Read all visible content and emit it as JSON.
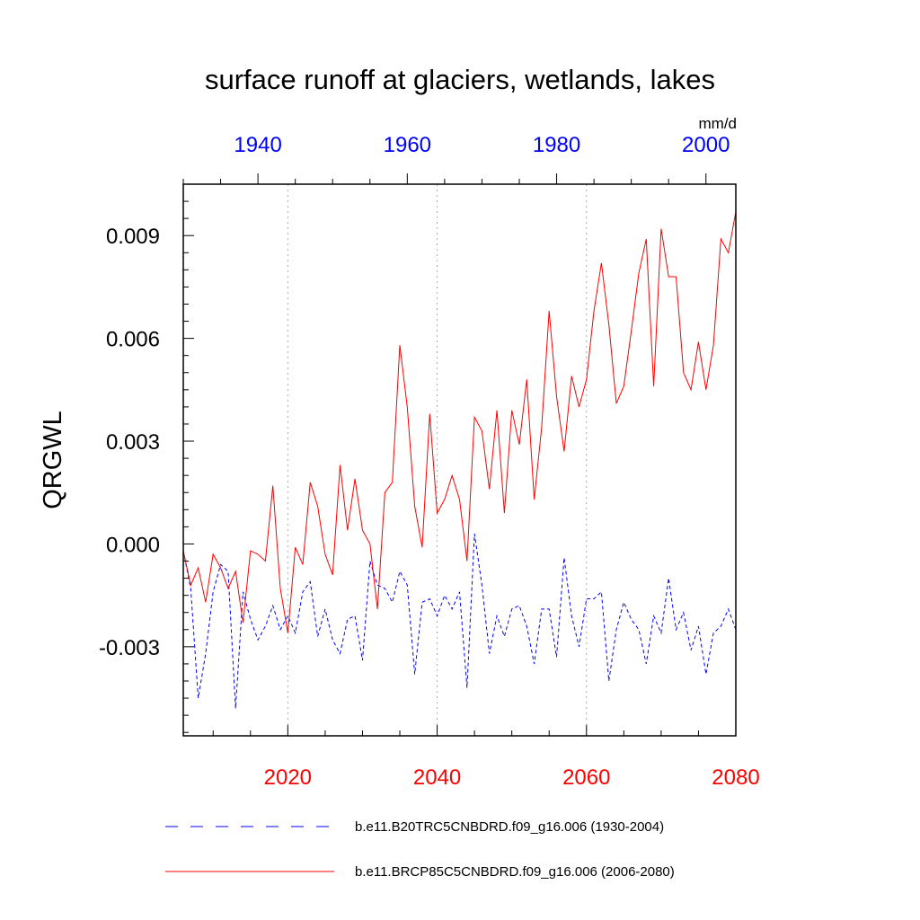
{
  "chart_data": {
    "type": "line",
    "title": "surface runoff at glaciers, wetlands, lakes",
    "ylabel": "QRGWL",
    "units": "mm/d",
    "ylim": [
      -0.0056,
      0.0105
    ],
    "yticks": [
      -0.003,
      0.0,
      0.003,
      0.006,
      0.009
    ],
    "ytick_labels": [
      "-0.003",
      "0.000",
      "0.003",
      "0.006",
      "0.009"
    ],
    "grid": "vertical dotted lines at labeled years",
    "legend_position": "bottom",
    "x_axis_bottom": {
      "range": [
        2006,
        2080
      ],
      "ticks": [
        2020,
        2040,
        2060,
        2080
      ],
      "tick_labels": [
        "2020",
        "2040",
        "2060",
        "2080"
      ],
      "color": "#ff0000"
    },
    "x_axis_top": {
      "range": [
        1930,
        2004
      ],
      "ticks": [
        1940,
        1960,
        1980,
        2000
      ],
      "tick_labels": [
        "1940",
        "1960",
        "1980",
        "2000"
      ],
      "color": "#0000ff"
    },
    "series": [
      {
        "name": "b.e11.B20TRC5CNBDRD.f09_g16.006 (1930-2004)",
        "color": "#0000ff",
        "style": "dashed",
        "axis": "top",
        "x": [
          1930,
          1931,
          1932,
          1933,
          1934,
          1935,
          1936,
          1937,
          1938,
          1939,
          1940,
          1941,
          1942,
          1943,
          1944,
          1945,
          1946,
          1947,
          1948,
          1949,
          1950,
          1951,
          1952,
          1953,
          1954,
          1955,
          1956,
          1957,
          1958,
          1959,
          1960,
          1961,
          1962,
          1963,
          1964,
          1965,
          1966,
          1967,
          1968,
          1969,
          1970,
          1971,
          1972,
          1973,
          1974,
          1975,
          1976,
          1977,
          1978,
          1979,
          1980,
          1981,
          1982,
          1983,
          1984,
          1985,
          1986,
          1987,
          1988,
          1989,
          1990,
          1991,
          1992,
          1993,
          1994,
          1995,
          1996,
          1997,
          1998,
          1999,
          2000,
          2001,
          2002,
          2003,
          2004
        ],
        "values": [
          -0.0002,
          -0.0013,
          -0.0045,
          -0.0032,
          -0.0014,
          -0.0006,
          -0.0008,
          -0.0048,
          -0.0014,
          -0.0022,
          -0.0028,
          -0.0024,
          -0.0018,
          -0.0025,
          -0.0021,
          -0.0026,
          -0.0014,
          -0.0011,
          -0.0027,
          -0.0019,
          -0.0028,
          -0.0032,
          -0.0022,
          -0.0021,
          -0.0034,
          -0.0005,
          -0.0012,
          -0.0013,
          -0.0017,
          -0.0008,
          -0.0012,
          -0.0038,
          -0.0017,
          -0.0016,
          -0.0021,
          -0.0015,
          -0.0019,
          -0.0014,
          -0.0042,
          0.0003,
          -0.0012,
          -0.0032,
          -0.0021,
          -0.0027,
          -0.0019,
          -0.0018,
          -0.0024,
          -0.0035,
          -0.0019,
          -0.0019,
          -0.0033,
          -0.0004,
          -0.0021,
          -0.003,
          -0.0016,
          -0.0016,
          -0.0014,
          -0.004,
          -0.0025,
          -0.0017,
          -0.0022,
          -0.0025,
          -0.0035,
          -0.0021,
          -0.0026,
          -0.001,
          -0.0025,
          -0.002,
          -0.0031,
          -0.0024,
          -0.0038,
          -0.0026,
          -0.0024,
          -0.0019,
          -0.0025
        ]
      },
      {
        "name": "b.e11.BRCP85C5CNBDRD.f09_g16.006 (2006-2080)",
        "color": "#ff0000",
        "style": "solid",
        "axis": "bottom",
        "x": [
          2006,
          2007,
          2008,
          2009,
          2010,
          2011,
          2012,
          2013,
          2014,
          2015,
          2016,
          2017,
          2018,
          2019,
          2020,
          2021,
          2022,
          2023,
          2024,
          2025,
          2026,
          2027,
          2028,
          2029,
          2030,
          2031,
          2032,
          2033,
          2034,
          2035,
          2036,
          2037,
          2038,
          2039,
          2040,
          2041,
          2042,
          2043,
          2044,
          2045,
          2046,
          2047,
          2048,
          2049,
          2050,
          2051,
          2052,
          2053,
          2054,
          2055,
          2056,
          2057,
          2058,
          2059,
          2060,
          2061,
          2062,
          2063,
          2064,
          2065,
          2066,
          2067,
          2068,
          2069,
          2070,
          2071,
          2072,
          2073,
          2074,
          2075,
          2076,
          2077,
          2078,
          2079,
          2080
        ],
        "values": [
          -0.0002,
          -0.0012,
          -0.0007,
          -0.0017,
          -0.0003,
          -0.0007,
          -0.0013,
          -0.0008,
          -0.0023,
          -0.0002,
          -0.0003,
          -0.0005,
          0.0017,
          -0.0013,
          -0.0026,
          -0.0001,
          -0.0006,
          0.0018,
          0.0011,
          -0.0003,
          -0.0009,
          0.0023,
          0.0004,
          0.0019,
          0.0004,
          0.0,
          -0.0019,
          0.0015,
          0.0018,
          0.0058,
          0.004,
          0.0011,
          -0.0001,
          0.0038,
          0.0009,
          0.0013,
          0.002,
          0.0013,
          -0.0005,
          0.0037,
          0.0033,
          0.0016,
          0.0039,
          0.0009,
          0.0039,
          0.0029,
          0.0048,
          0.0013,
          0.0034,
          0.0068,
          0.0043,
          0.0027,
          0.0049,
          0.004,
          0.0048,
          0.0068,
          0.0082,
          0.0064,
          0.0041,
          0.0046,
          0.0062,
          0.0079,
          0.0089,
          0.0046,
          0.0092,
          0.0078,
          0.0078,
          0.005,
          0.0045,
          0.0059,
          0.0045,
          0.0058,
          0.0089,
          0.0085,
          0.0097
        ]
      }
    ]
  }
}
